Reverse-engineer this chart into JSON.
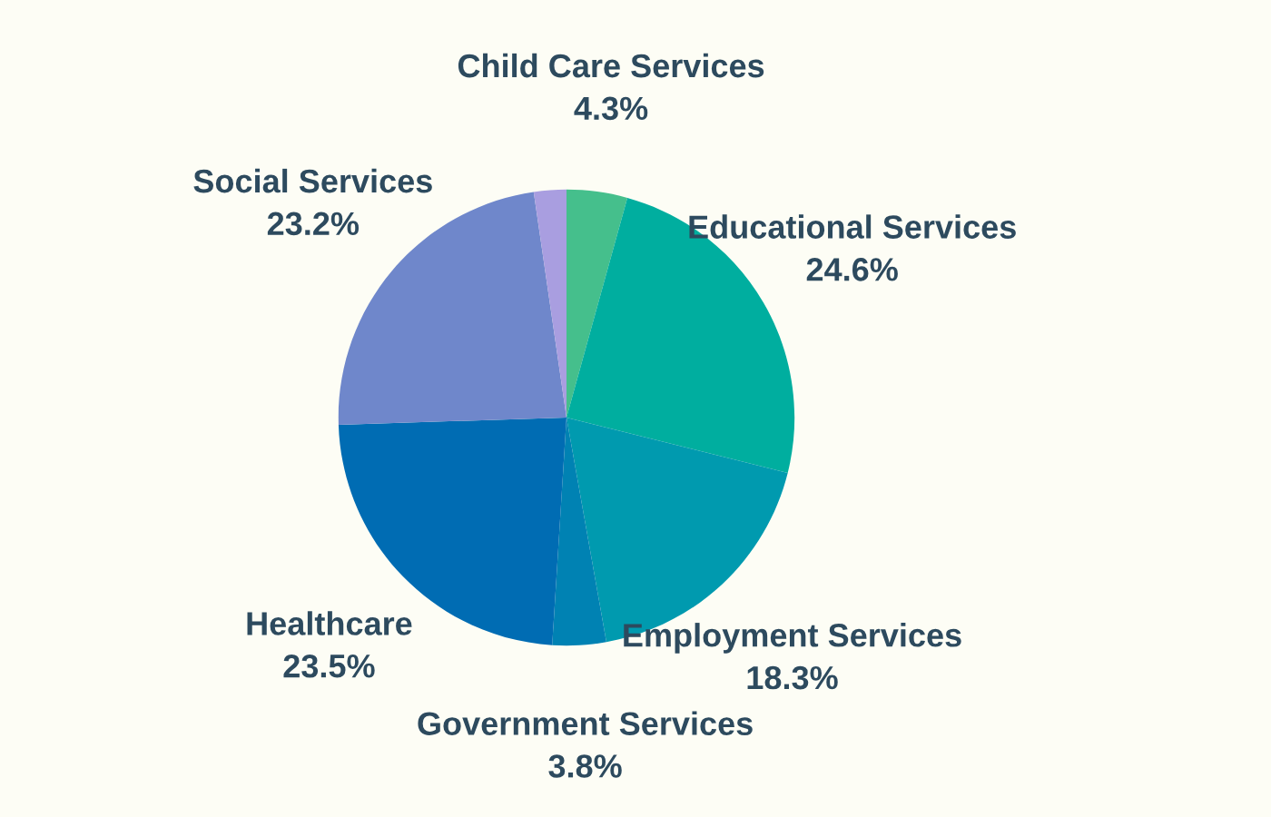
{
  "chart_data": {
    "type": "pie",
    "categories": [
      "Child Care Services",
      "Educational Services",
      "Employment Services",
      "Government Services",
      "Healthcare",
      "Social Services",
      null
    ],
    "values": [
      4.3,
      24.6,
      18.3,
      3.8,
      23.5,
      23.2,
      2.3
    ],
    "value_labels": [
      "4.3%",
      "24.6%",
      "18.3%",
      "3.8%",
      "23.5%",
      "23.2%",
      null
    ],
    "colors": [
      "#45bf8c",
      "#00ae9f",
      "#009aaf",
      "#0082b3",
      "#006cb3",
      "#6f87cb",
      "#a99ee0"
    ]
  }
}
